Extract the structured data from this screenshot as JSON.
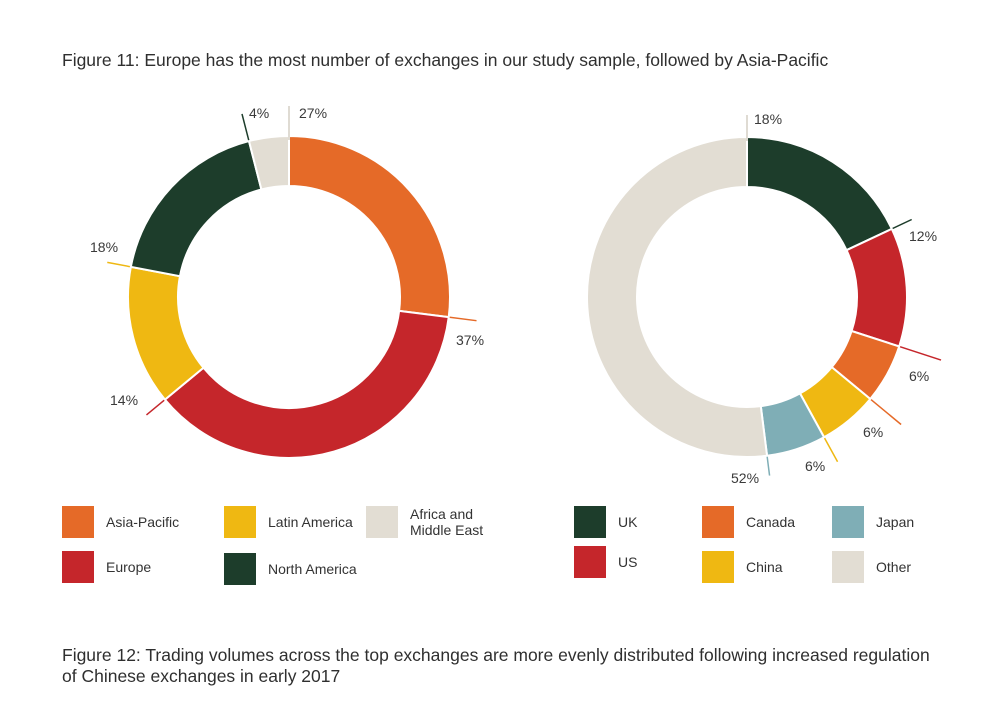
{
  "figure11_title": "Figure 11: Europe has the most number of exchanges in our study sample, followed by Asia-Pacific",
  "figure12_title": "Figure 12: Trading volumes across the top exchanges are more evenly distributed following increased regulation of Chinese exchanges in early 2017",
  "chart_data": [
    {
      "type": "pie",
      "title": "Figure 11: Europe has the most number of exchanges in our study sample, followed by Asia-Pacific",
      "donut": true,
      "slices": [
        {
          "label": "Asia-Pacific",
          "value": 27,
          "display": "27%",
          "color": "#e56a28"
        },
        {
          "label": "Europe",
          "value": 37,
          "display": "37%",
          "color": "#c5262b"
        },
        {
          "label": "Latin America",
          "value": 14,
          "display": "14%",
          "color": "#efb812"
        },
        {
          "label": "North America",
          "value": 18,
          "display": "18%",
          "color": "#1d3d2b"
        },
        {
          "label": "Africa and Middle East",
          "value": 4,
          "display": "4%",
          "color": "#e2ddd3"
        }
      ],
      "legend": [
        {
          "label": "Asia-Pacific",
          "color": "#e56a28"
        },
        {
          "label": "Latin America",
          "color": "#efb812"
        },
        {
          "label": "Africa and Middle East",
          "color": "#e2ddd3"
        },
        {
          "label": "Europe",
          "color": "#c5262b"
        },
        {
          "label": "North America",
          "color": "#1d3d2b"
        }
      ]
    },
    {
      "type": "pie",
      "title": "Figure 12: Trading volumes across the top exchanges are more evenly distributed following increased regulation of Chinese exchanges in early 2017",
      "donut": true,
      "slices": [
        {
          "label": "UK",
          "value": 18,
          "display": "18%",
          "color": "#1d3d2b"
        },
        {
          "label": "US",
          "value": 12,
          "display": "12%",
          "color": "#c5262b"
        },
        {
          "label": "Canada",
          "value": 6,
          "display": "6%",
          "color": "#e56a28"
        },
        {
          "label": "China",
          "value": 6,
          "display": "6%",
          "color": "#efb812"
        },
        {
          "label": "Japan",
          "value": 6,
          "display": "6%",
          "color": "#7faeb6"
        },
        {
          "label": "Other",
          "value": 52,
          "display": "52%",
          "color": "#e2ddd3"
        }
      ],
      "legend": [
        {
          "label": "UK",
          "color": "#1d3d2b"
        },
        {
          "label": "Canada",
          "color": "#e56a28"
        },
        {
          "label": "Japan",
          "color": "#7faeb6"
        },
        {
          "label": "US",
          "color": "#c5262b"
        },
        {
          "label": "China",
          "color": "#efb812"
        },
        {
          "label": "Other",
          "color": "#e2ddd3"
        }
      ]
    }
  ]
}
